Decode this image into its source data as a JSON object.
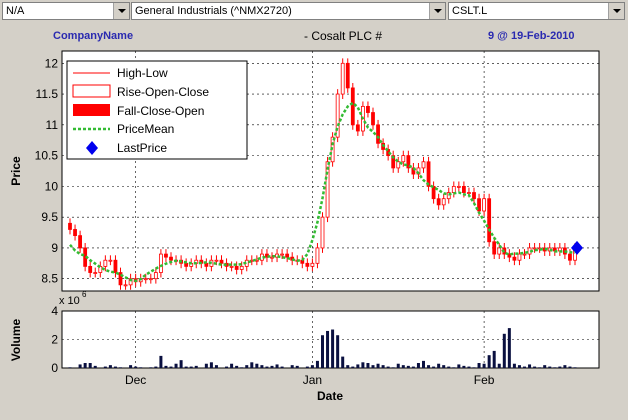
{
  "toolbar": {
    "exchange": "N/A",
    "sector": "General Industrials (^NMX2720)",
    "ticker": "CSLT.L"
  },
  "header": {
    "left": "CompanyName",
    "center": "- Cosalt PLC #",
    "right": "9 @ 19-Feb-2010"
  },
  "colors": {
    "candle": "#ff0000",
    "mean": "#33bb33",
    "last": "#0000ee",
    "volume": "#0a1040"
  },
  "chart_data": [
    {
      "type": "candlestick",
      "ylabel": "Price",
      "ylim": [
        8.3,
        12.2
      ],
      "yticks": [
        "8.5",
        "9",
        "9.5",
        "10",
        "10.5",
        "11",
        "11.5",
        "12"
      ],
      "grid": true,
      "legend_position": "top-left",
      "legend": [
        "High-Low",
        "Rise-Open-Close",
        "Fall-Close-Open",
        "PriceMean",
        "LastPrice"
      ],
      "last_price": 9.0,
      "closes": [
        9.3,
        9.2,
        9.0,
        8.7,
        8.6,
        8.6,
        8.7,
        8.8,
        8.8,
        8.6,
        8.4,
        8.4,
        8.5,
        8.45,
        8.5,
        8.5,
        8.5,
        8.6,
        8.9,
        8.85,
        8.8,
        8.8,
        8.75,
        8.7,
        8.75,
        8.8,
        8.75,
        8.7,
        8.8,
        8.8,
        8.75,
        8.7,
        8.7,
        8.65,
        8.7,
        8.8,
        8.8,
        8.8,
        8.9,
        8.85,
        8.85,
        8.9,
        8.9,
        8.85,
        8.8,
        8.8,
        8.75,
        8.7,
        8.75,
        9.0,
        9.5,
        10.4,
        10.8,
        11.5,
        12.0,
        11.6,
        11.0,
        10.9,
        11.3,
        11.2,
        11.0,
        10.7,
        10.6,
        10.5,
        10.3,
        10.4,
        10.5,
        10.3,
        10.2,
        10.3,
        10.4,
        10.0,
        9.8,
        9.7,
        9.8,
        9.9,
        10.0,
        10.0,
        9.9,
        9.9,
        9.8,
        9.6,
        9.8,
        9.1,
        8.9,
        9.0,
        8.9,
        8.85,
        8.8,
        8.9,
        8.9,
        9.0,
        9.0,
        9.0,
        8.95,
        9.0,
        8.95,
        9.0,
        8.9,
        8.8,
        9.0
      ]
    },
    {
      "type": "bar",
      "ylabel": "Volume",
      "xlabel": "Date",
      "ylim": [
        0,
        4
      ],
      "yticks": [
        "0",
        "2",
        "4"
      ],
      "multiplier_label": "x 10",
      "multiplier_exp": "6",
      "x_ticks": [
        "Dec",
        "Jan",
        "Feb"
      ],
      "values": [
        0.05,
        0,
        0.25,
        0.35,
        0.35,
        0.15,
        0,
        0.1,
        0.2,
        0.1,
        0.05,
        0,
        0.2,
        0.1,
        0.05,
        0,
        0.05,
        0.1,
        0.85,
        0.15,
        0.1,
        0.3,
        0.55,
        0.1,
        0.1,
        0.15,
        0,
        0.3,
        0.4,
        0.2,
        0,
        0.1,
        0.3,
        0.15,
        0.05,
        0.2,
        0.4,
        0.3,
        0.2,
        0.1,
        0.15,
        0.25,
        0.1,
        0,
        0.2,
        0.15,
        0,
        0.1,
        0.2,
        0.5,
        2.3,
        2.6,
        2.7,
        2.3,
        0.8,
        0.2,
        0.1,
        0.25,
        0.4,
        0.35,
        0.2,
        0.3,
        0.2,
        0.1,
        0.05,
        0.3,
        0.2,
        0.15,
        0.1,
        0.35,
        0.5,
        0.2,
        0.1,
        0.3,
        0.2,
        0.1,
        0.05,
        0.25,
        0.15,
        0.1,
        0.05,
        0.35,
        0.3,
        0.9,
        1.2,
        0.3,
        2.4,
        2.8,
        0.3,
        0.2,
        0.1,
        0.25,
        0.1,
        0.05,
        0.2,
        0.1,
        0.05,
        0.1,
        0.2,
        0.1,
        0.05
      ]
    }
  ]
}
